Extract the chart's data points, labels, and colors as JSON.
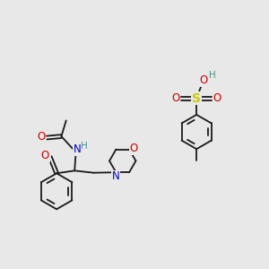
{
  "bg_color": "#e8e8e8",
  "bond_color": "#1a1a1a",
  "bond_lw": 1.3,
  "colors": {
    "N": "#0000cc",
    "O": "#cc0000",
    "S": "#cccc00",
    "H": "#4a9090",
    "C": "#1a1a1a"
  },
  "figsize": [
    3.0,
    3.0
  ],
  "dpi": 100
}
